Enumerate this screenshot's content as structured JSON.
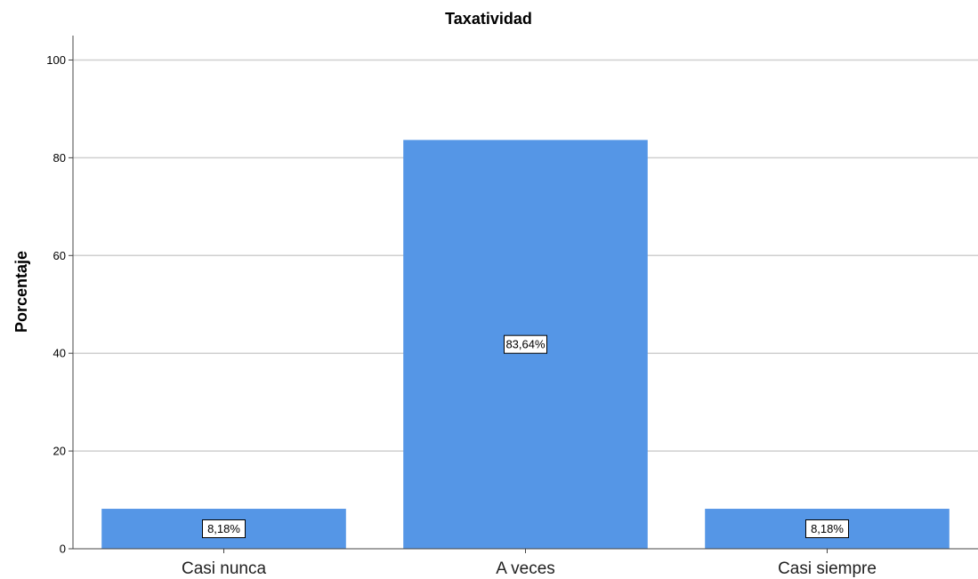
{
  "chart_data": {
    "type": "bar",
    "title": "Taxatividad",
    "xlabel": "",
    "ylabel": "Porcentaje",
    "categories": [
      "Casi nunca",
      "A veces",
      "Casi siempre"
    ],
    "values": [
      8.18,
      83.64,
      8.18
    ],
    "data_labels": [
      "8,18%",
      "83,64%",
      "8,18%"
    ],
    "yticks": [
      "0",
      "20",
      "40",
      "60",
      "80",
      "100"
    ],
    "ytick_values": [
      0,
      20,
      40,
      60,
      80,
      100
    ],
    "ylim": [
      0,
      105
    ],
    "grid": true,
    "bar_color": "#5596e6",
    "grid_color": "#cfcfcf"
  }
}
